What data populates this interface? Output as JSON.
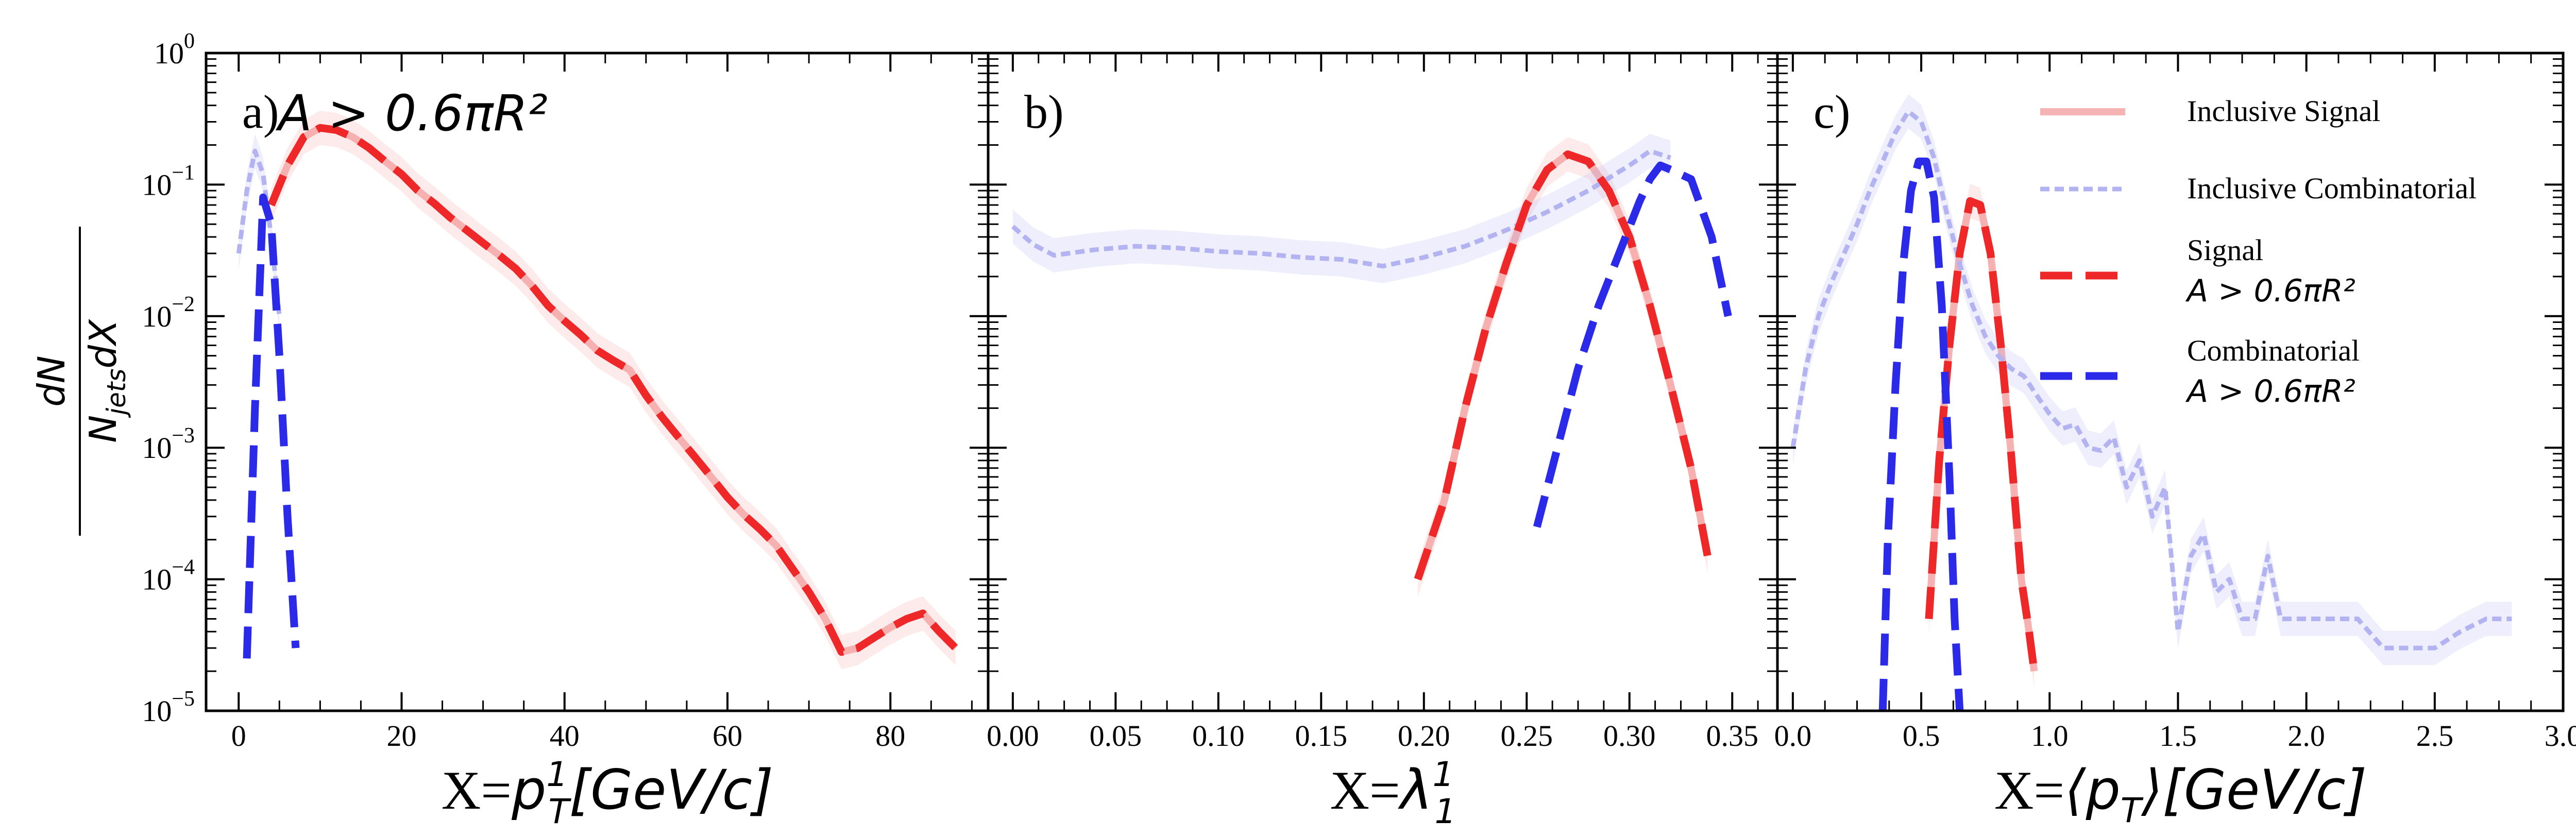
{
  "chart_data": {
    "type": "line",
    "yscale": "log",
    "ylabel": {
      "numerator": "dN",
      "denominator": "N",
      "sub": "jets",
      "suffix": "dX"
    },
    "yticks": [
      {
        "base": "10",
        "exp": "0",
        "value": 1
      },
      {
        "base": "10",
        "exp": "−1",
        "value": 0.1
      },
      {
        "base": "10",
        "exp": "−2",
        "value": 0.01
      },
      {
        "base": "10",
        "exp": "−3",
        "value": 0.001
      },
      {
        "base": "10",
        "exp": "−4",
        "value": 0.0001
      },
      {
        "base": "10",
        "exp": "−5",
        "value": 1e-05
      }
    ],
    "ylim": [
      1e-05,
      1
    ],
    "legend": [
      {
        "key": "inc_sig",
        "label_lines": [
          "Inclusive Signal"
        ],
        "color": "#f4a6a6",
        "style": "solid"
      },
      {
        "key": "inc_comb",
        "label_lines": [
          "Inclusive Combinatorial"
        ],
        "color": "#b3b3f2",
        "style": "dotted"
      },
      {
        "key": "sig",
        "label_lines": [
          "Signal",
          "A > 0.6πR²"
        ],
        "color": "#ee2828",
        "style": "dashed"
      },
      {
        "key": "comb",
        "label_lines": [
          "Combinatorial",
          "A > 0.6πR²"
        ],
        "color": "#2a2ae8",
        "style": "dashed"
      }
    ],
    "panels": [
      {
        "label": "a)",
        "annotation": "A > 0.6πR²",
        "xlabel": {
          "prefix": "X=",
          "var": "p",
          "sup": "1",
          "sub": "T",
          "unit": "[GeV/c]"
        },
        "xlim": [
          -4,
          92
        ],
        "xticks": [
          0,
          20,
          40,
          60,
          80
        ],
        "xtick_labels": [
          "0",
          "20",
          "40",
          "60",
          "80"
        ],
        "series": [
          {
            "key": "inc_sig",
            "x": [
              4,
              6,
              8,
              10,
              12,
              14,
              16,
              18,
              20,
              22,
              24,
              26,
              28,
              30,
              32,
              34,
              36,
              38,
              40,
              42,
              44,
              46,
              48,
              50,
              52,
              54,
              56,
              58,
              60,
              62,
              64,
              66,
              68,
              70,
              72,
              74,
              76,
              78,
              80,
              82,
              84,
              86,
              88
            ],
            "y": [
              0.07,
              0.14,
              0.23,
              0.27,
              0.26,
              0.23,
              0.19,
              0.15,
              0.12,
              0.09,
              0.072,
              0.056,
              0.045,
              0.036,
              0.029,
              0.023,
              0.017,
              0.012,
              0.0092,
              0.0072,
              0.0055,
              0.0046,
              0.0039,
              0.0025,
              0.0017,
              0.0012,
              0.00085,
              0.0006,
              0.00042,
              0.00031,
              0.00024,
              0.00018,
              0.00012,
              8e-05,
              5e-05,
              2.8e-05,
              3e-05,
              3.6e-05,
              4.3e-05,
              5e-05,
              5.5e-05,
              4e-05,
              3e-05
            ]
          },
          {
            "key": "inc_comb",
            "x": [
              0,
              1,
              2,
              3,
              4,
              5
            ],
            "y": [
              0.03,
              0.09,
              0.18,
              0.12,
              0.04,
              0.01
            ]
          },
          {
            "key": "sig",
            "x": [
              4,
              6,
              8,
              10,
              12,
              14,
              16,
              18,
              20,
              22,
              24,
              26,
              28,
              30,
              32,
              34,
              36,
              38,
              40,
              42,
              44,
              46,
              48,
              50,
              52,
              54,
              56,
              58,
              60,
              62,
              64,
              66,
              68,
              70,
              72,
              74,
              76,
              78,
              80,
              82,
              84,
              86,
              88
            ],
            "y": [
              0.07,
              0.14,
              0.23,
              0.27,
              0.26,
              0.23,
              0.19,
              0.15,
              0.12,
              0.09,
              0.072,
              0.056,
              0.045,
              0.036,
              0.029,
              0.023,
              0.017,
              0.012,
              0.0092,
              0.0072,
              0.0055,
              0.0046,
              0.0039,
              0.0025,
              0.0017,
              0.0012,
              0.00085,
              0.0006,
              0.00042,
              0.00031,
              0.00024,
              0.00018,
              0.00012,
              8e-05,
              5e-05,
              2.8e-05,
              3e-05,
              3.6e-05,
              4.3e-05,
              5e-05,
              5.5e-05,
              4e-05,
              3e-05
            ]
          },
          {
            "key": "comb",
            "x": [
              1,
              2,
              3,
              4,
              5,
              6,
              7
            ],
            "y": [
              2.5e-05,
              0.002,
              0.08,
              0.05,
              0.005,
              0.0003,
              3e-05
            ]
          }
        ]
      },
      {
        "label": "b)",
        "xlabel": {
          "prefix": "X=",
          "var": "λ",
          "sup": "1",
          "sub": "1",
          "unit": ""
        },
        "xlim": [
          -0.012,
          0.372
        ],
        "xticks": [
          0,
          0.05,
          0.1,
          0.15,
          0.2,
          0.25,
          0.3,
          0.35
        ],
        "xtick_labels": [
          "0.00",
          "0.05",
          "0.10",
          "0.15",
          "0.20",
          "0.25",
          "0.30",
          "0.35"
        ],
        "series": [
          {
            "key": "inc_sig",
            "x": [
              0.197,
              0.21,
              0.22,
              0.23,
              0.24,
              0.25,
              0.26,
              0.27,
              0.28,
              0.29,
              0.3,
              0.31,
              0.32,
              0.33,
              0.338
            ],
            "y": [
              0.0001,
              0.0004,
              0.002,
              0.008,
              0.025,
              0.07,
              0.13,
              0.17,
              0.15,
              0.09,
              0.04,
              0.012,
              0.003,
              0.0007,
              0.00015
            ]
          },
          {
            "key": "inc_comb",
            "x": [
              0,
              0.01,
              0.02,
              0.04,
              0.06,
              0.08,
              0.1,
              0.12,
              0.14,
              0.16,
              0.18,
              0.2,
              0.22,
              0.24,
              0.26,
              0.28,
              0.3,
              0.31,
              0.32
            ],
            "y": [
              0.048,
              0.035,
              0.029,
              0.032,
              0.034,
              0.033,
              0.031,
              0.03,
              0.028,
              0.027,
              0.024,
              0.028,
              0.034,
              0.045,
              0.062,
              0.09,
              0.14,
              0.18,
              0.16
            ]
          },
          {
            "key": "sig",
            "x": [
              0.197,
              0.21,
              0.22,
              0.23,
              0.24,
              0.25,
              0.26,
              0.27,
              0.28,
              0.29,
              0.3,
              0.31,
              0.32,
              0.33,
              0.338
            ],
            "y": [
              0.0001,
              0.0004,
              0.002,
              0.008,
              0.025,
              0.07,
              0.13,
              0.17,
              0.15,
              0.09,
              0.04,
              0.012,
              0.003,
              0.0007,
              0.00015
            ]
          },
          {
            "key": "comb",
            "x": [
              0.255,
              0.265,
              0.275,
              0.285,
              0.295,
              0.305,
              0.31,
              0.315,
              0.32,
              0.33,
              0.34,
              0.348
            ],
            "y": [
              0.00025,
              0.001,
              0.004,
              0.012,
              0.03,
              0.075,
              0.11,
              0.14,
              0.13,
              0.11,
              0.04,
              0.01
            ]
          }
        ]
      },
      {
        "label": "c)",
        "xlabel": {
          "prefix": "X=",
          "var": "⟨p",
          "sup": "",
          "sub": "T",
          "unit": "⟩[GeV/c]"
        },
        "xlim": [
          -0.06,
          3.0
        ],
        "xticks": [
          0,
          0.5,
          1,
          1.5,
          2,
          2.5,
          3
        ],
        "xtick_labels": [
          "0.0",
          "0.5",
          "1.0",
          "1.5",
          "2.0",
          "2.5",
          "3.0"
        ],
        "series": [
          {
            "key": "inc_sig",
            "x": [
              0.53,
              0.57,
              0.61,
              0.65,
              0.69,
              0.73,
              0.77,
              0.81,
              0.85,
              0.89,
              0.92,
              0.94
            ],
            "y": [
              5e-05,
              0.0008,
              0.006,
              0.03,
              0.075,
              0.07,
              0.03,
              0.006,
              0.0009,
              0.0001,
              4e-05,
              2e-05
            ]
          },
          {
            "key": "inc_comb",
            "x": [
              0,
              0.05,
              0.1,
              0.15,
              0.2,
              0.25,
              0.3,
              0.35,
              0.4,
              0.45,
              0.5,
              0.55,
              0.6,
              0.65,
              0.7,
              0.75,
              0.8,
              0.85,
              0.9,
              0.95,
              1.0,
              1.05,
              1.1,
              1.15,
              1.2,
              1.25,
              1.3,
              1.35,
              1.4,
              1.45,
              1.5,
              1.55,
              1.6,
              1.65,
              1.7,
              1.75,
              1.8,
              1.85,
              1.9,
              1.95,
              2.0,
              2.1,
              2.2,
              2.3,
              2.4,
              2.5,
              2.6,
              2.7,
              2.8
            ],
            "y": [
              0.001,
              0.004,
              0.01,
              0.018,
              0.03,
              0.05,
              0.09,
              0.15,
              0.25,
              0.36,
              0.3,
              0.16,
              0.06,
              0.025,
              0.012,
              0.007,
              0.005,
              0.004,
              0.0035,
              0.0025,
              0.0018,
              0.0014,
              0.0015,
              0.001,
              0.00095,
              0.0012,
              0.0005,
              0.0008,
              0.0003,
              0.0005,
              4e-05,
              0.00015,
              0.00022,
              8e-05,
              0.0001,
              5e-05,
              5e-05,
              0.00015,
              5e-05,
              5e-05,
              5e-05,
              5e-05,
              5e-05,
              3e-05,
              3e-05,
              3e-05,
              4e-05,
              5e-05,
              5e-05
            ]
          },
          {
            "key": "sig",
            "x": [
              0.53,
              0.57,
              0.61,
              0.65,
              0.69,
              0.73,
              0.77,
              0.81,
              0.85,
              0.89,
              0.92,
              0.94
            ],
            "y": [
              5e-05,
              0.0008,
              0.006,
              0.03,
              0.075,
              0.07,
              0.03,
              0.006,
              0.0009,
              0.0001,
              4e-05,
              2e-05
            ]
          },
          {
            "key": "comb",
            "x": [
              0.35,
              0.37,
              0.4,
              0.43,
              0.46,
              0.49,
              0.52,
              0.55,
              0.58,
              0.61,
              0.63,
              0.65
            ],
            "y": [
              1e-05,
              0.0002,
              0.003,
              0.025,
              0.09,
              0.15,
              0.15,
              0.08,
              0.012,
              0.0006,
              5e-05,
              1e-05
            ]
          }
        ]
      }
    ]
  }
}
